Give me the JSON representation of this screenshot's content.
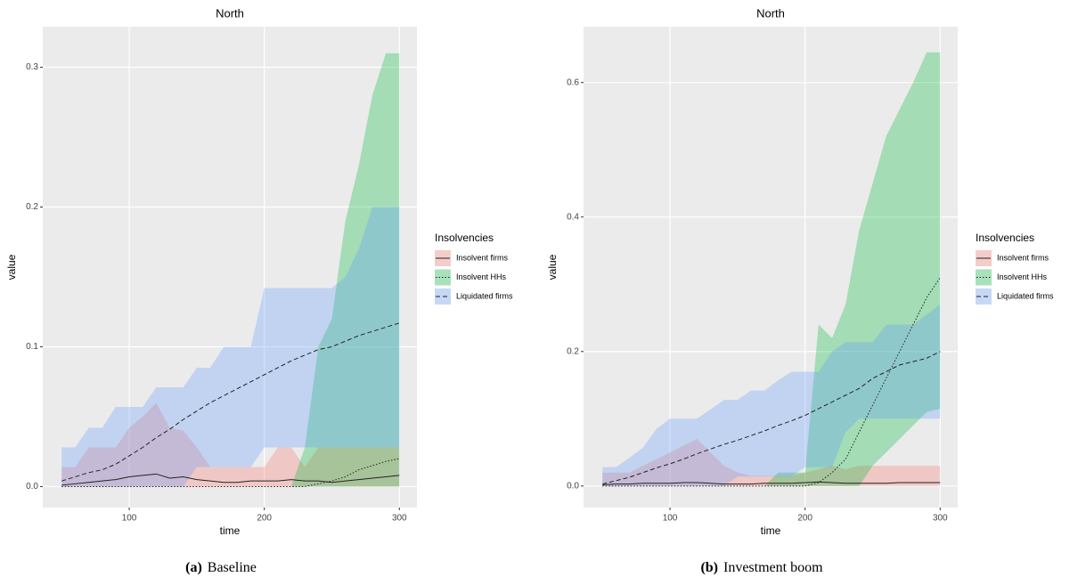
{
  "chart_data": [
    {
      "type": "line",
      "title": "North",
      "x_label": "time",
      "y_label": "value",
      "legend_title": "Insolvencies",
      "legend_position": "right",
      "caption_label": "(a)",
      "caption": "Baseline",
      "xlim": [
        36,
        313
      ],
      "xticks": [
        100,
        200,
        300
      ],
      "ylim": [
        -0.015,
        0.329
      ],
      "yticks": [
        {
          "value": 0,
          "label": "0.0"
        },
        0.1,
        0.2,
        0.3
      ],
      "grid": true,
      "x": [
        50,
        60,
        70,
        80,
        90,
        100,
        110,
        120,
        130,
        140,
        150,
        160,
        170,
        180,
        190,
        200,
        210,
        220,
        230,
        240,
        250,
        260,
        270,
        280,
        290,
        300
      ],
      "series": [
        {
          "name": "Insolvent firms",
          "color": "#f8766d",
          "linetype": "solid",
          "values": [
            0.001,
            0.002,
            0.003,
            0.004,
            0.005,
            0.007,
            0.008,
            0.009,
            0.006,
            0.007,
            0.005,
            0.004,
            0.003,
            0.003,
            0.004,
            0.004,
            0.004,
            0.005,
            0.004,
            0.004,
            0.003,
            0.004,
            0.005,
            0.006,
            0.007,
            0.008
          ],
          "lower": [
            0,
            0,
            0,
            0,
            0,
            0,
            0,
            0,
            0,
            0,
            0,
            0,
            0,
            0,
            0,
            0,
            0,
            0,
            0,
            0,
            0,
            0,
            0,
            0,
            0,
            0
          ],
          "upper": [
            0.014,
            0.014,
            0.028,
            0.028,
            0.028,
            0.042,
            0.05,
            0.06,
            0.042,
            0.04,
            0.028,
            0.014,
            0.014,
            0.014,
            0.014,
            0.014,
            0.028,
            0.028,
            0.014,
            0.028,
            0.028,
            0.028,
            0.028,
            0.028,
            0.028,
            0.028
          ]
        },
        {
          "name": "Insolvent HHs",
          "color": "#00ba38",
          "linetype": "dotted",
          "values": [
            0,
            0,
            0,
            0,
            0,
            0,
            0,
            0,
            0,
            0,
            0,
            0,
            0,
            0,
            0,
            0,
            0,
            0,
            0,
            0.002,
            0.004,
            0.007,
            0.012,
            0.015,
            0.018,
            0.02
          ],
          "lower": [
            0,
            0,
            0,
            0,
            0,
            0,
            0,
            0,
            0,
            0,
            0,
            0,
            0,
            0,
            0,
            0,
            0,
            0,
            0,
            0,
            0,
            0,
            0,
            0,
            0,
            0
          ],
          "upper": [
            0,
            0,
            0,
            0,
            0,
            0,
            0,
            0,
            0,
            0,
            0,
            0,
            0,
            0,
            0,
            0,
            0,
            0,
            0.028,
            0.1,
            0.12,
            0.19,
            0.23,
            0.28,
            0.31,
            0.31
          ]
        },
        {
          "name": "Liquidated firms",
          "color": "#619cff",
          "linetype": "dashed",
          "values": [
            0.004,
            0.007,
            0.01,
            0.012,
            0.016,
            0.022,
            0.028,
            0.035,
            0.041,
            0.048,
            0.054,
            0.06,
            0.065,
            0.07,
            0.075,
            0.08,
            0.085,
            0.09,
            0.094,
            0.098,
            0.1,
            0.104,
            0.108,
            0.111,
            0.114,
            0.117
          ],
          "lower": [
            0,
            0,
            0,
            0,
            0,
            0,
            0,
            0,
            0,
            0,
            0.014,
            0.014,
            0.014,
            0.014,
            0.014,
            0.028,
            0.028,
            0.028,
            0.028,
            0.028,
            0.028,
            0.028,
            0.028,
            0.028,
            0.028,
            0.028
          ],
          "upper": [
            0.028,
            0.028,
            0.042,
            0.042,
            0.057,
            0.057,
            0.057,
            0.071,
            0.071,
            0.071,
            0.085,
            0.085,
            0.1,
            0.1,
            0.1,
            0.142,
            0.142,
            0.142,
            0.142,
            0.142,
            0.142,
            0.15,
            0.17,
            0.2,
            0.2,
            0.2
          ]
        }
      ]
    },
    {
      "type": "line",
      "title": "North",
      "x_label": "time",
      "y_label": "value",
      "legend_title": "Insolvencies",
      "legend_position": "right",
      "caption_label": "(b)",
      "caption": "Investment boom",
      "xlim": [
        36,
        313
      ],
      "xticks": [
        100,
        200,
        300
      ],
      "ylim": [
        -0.032,
        0.683
      ],
      "yticks": [
        {
          "value": 0,
          "label": "0.0"
        },
        0.2,
        0.4,
        0.6
      ],
      "grid": true,
      "x": [
        50,
        60,
        70,
        80,
        90,
        100,
        110,
        120,
        130,
        140,
        150,
        160,
        170,
        180,
        190,
        200,
        210,
        220,
        230,
        240,
        250,
        260,
        270,
        280,
        290,
        300
      ],
      "series": [
        {
          "name": "Insolvent firms",
          "color": "#f8766d",
          "linetype": "solid",
          "values": [
            0.002,
            0.003,
            0.003,
            0.004,
            0.004,
            0.004,
            0.005,
            0.005,
            0.004,
            0.003,
            0.003,
            0.003,
            0.004,
            0.004,
            0.004,
            0.005,
            0.006,
            0.005,
            0.004,
            0.004,
            0.004,
            0.004,
            0.005,
            0.005,
            0.005,
            0.005
          ],
          "lower": [
            0,
            0,
            0,
            0,
            0,
            0,
            0,
            0,
            0,
            0,
            0,
            0,
            0,
            0,
            0,
            0,
            0,
            0,
            0,
            0,
            0,
            0,
            0,
            0,
            0,
            0
          ],
          "upper": [
            0.02,
            0.02,
            0.02,
            0.03,
            0.04,
            0.05,
            0.06,
            0.07,
            0.05,
            0.03,
            0.02,
            0.015,
            0.015,
            0.015,
            0.015,
            0.02,
            0.025,
            0.03,
            0.025,
            0.03,
            0.03,
            0.03,
            0.03,
            0.03,
            0.03,
            0.03
          ]
        },
        {
          "name": "Insolvent HHs",
          "color": "#00ba38",
          "linetype": "dotted",
          "values": [
            0,
            0,
            0,
            0,
            0,
            0,
            0,
            0,
            0,
            0,
            0,
            0,
            0,
            0,
            0,
            0,
            0.005,
            0.02,
            0.04,
            0.08,
            0.12,
            0.16,
            0.2,
            0.24,
            0.28,
            0.31
          ],
          "lower": [
            0,
            0,
            0,
            0,
            0,
            0,
            0,
            0,
            0,
            0,
            0,
            0,
            0,
            0,
            0,
            0,
            0,
            0,
            0,
            0,
            0.03,
            0.05,
            0.07,
            0.09,
            0.11,
            0.115
          ],
          "upper": [
            0,
            0,
            0,
            0,
            0,
            0,
            0,
            0,
            0,
            0,
            0,
            0,
            0,
            0.02,
            0.02,
            0.02,
            0.24,
            0.22,
            0.27,
            0.38,
            0.45,
            0.52,
            0.56,
            0.6,
            0.645,
            0.645
          ]
        },
        {
          "name": "Liquidated firms",
          "color": "#619cff",
          "linetype": "dashed",
          "values": [
            0.003,
            0.008,
            0.013,
            0.02,
            0.027,
            0.033,
            0.04,
            0.048,
            0.055,
            0.062,
            0.068,
            0.075,
            0.082,
            0.09,
            0.097,
            0.105,
            0.115,
            0.125,
            0.135,
            0.145,
            0.16,
            0.17,
            0.18,
            0.185,
            0.19,
            0.2
          ],
          "lower": [
            0,
            0,
            0,
            0,
            0,
            0,
            0,
            0,
            0,
            0,
            0.014,
            0.014,
            0.014,
            0.014,
            0.014,
            0.028,
            0.028,
            0.028,
            0.08,
            0.1,
            0.1,
            0.1,
            0.1,
            0.1,
            0.1,
            0.1
          ],
          "upper": [
            0.028,
            0.028,
            0.042,
            0.057,
            0.085,
            0.1,
            0.1,
            0.1,
            0.114,
            0.128,
            0.128,
            0.142,
            0.142,
            0.157,
            0.17,
            0.17,
            0.17,
            0.2,
            0.214,
            0.214,
            0.214,
            0.24,
            0.24,
            0.24,
            0.255,
            0.27
          ]
        }
      ]
    }
  ]
}
